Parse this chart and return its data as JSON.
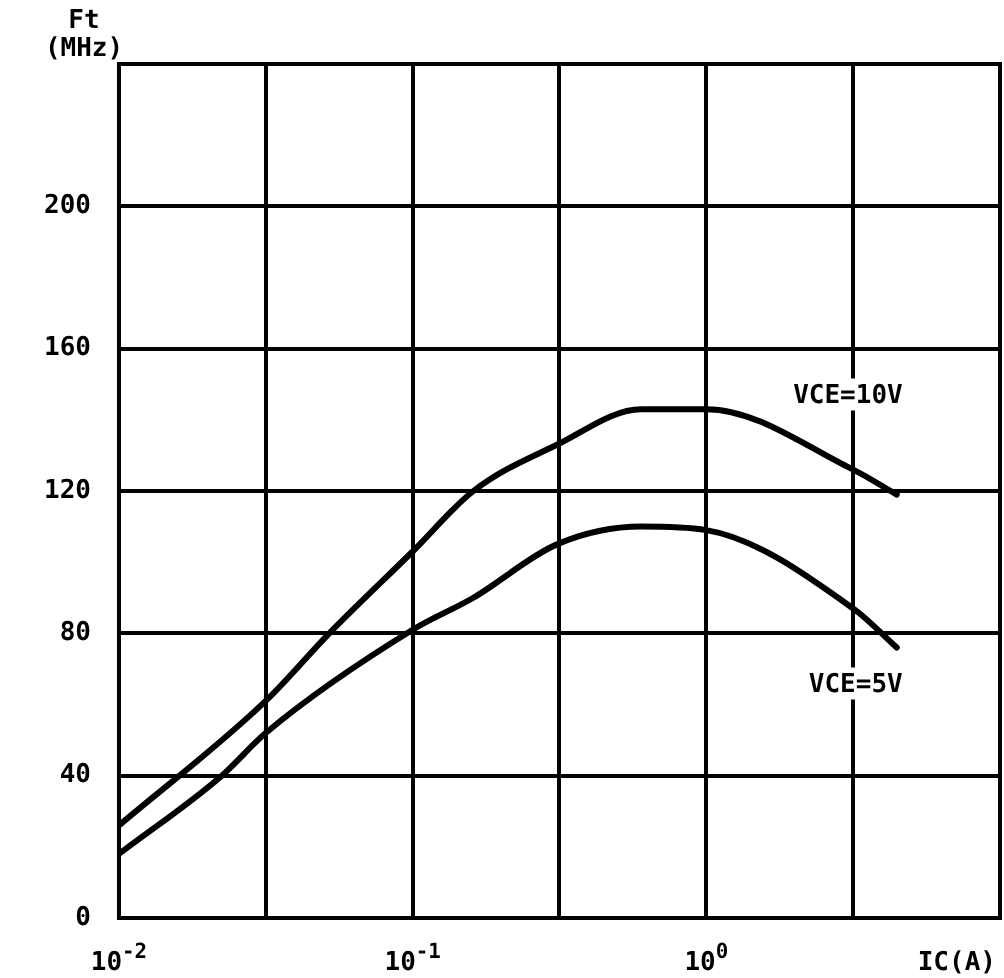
{
  "chart_data": {
    "type": "line",
    "xlabel": "IC(A)",
    "ylabel": "Ft (MHz)",
    "log": "x",
    "xlim": [
      0.01,
      10
    ],
    "xticks": [
      {
        "value": 0.01,
        "label": "10$^{-2}$"
      },
      {
        "value": 0.0316,
        "label": null
      },
      {
        "value": 0.1,
        "label": "10$^{-1}$"
      },
      {
        "value": 0.316,
        "label": null
      },
      {
        "value": 1,
        "label": "10$^{0}$"
      },
      {
        "value": 3.16,
        "label": null
      }
    ],
    "ylim": [
      0,
      240
    ],
    "yticks": [
      0,
      40,
      80,
      120,
      160,
      200
    ],
    "grid": true,
    "legend": false,
    "marker": "none",
    "line_style": "solid",
    "series": [
      {
        "name": "VCE=10V",
        "color": "#000000",
        "x": [
          0.01,
          0.0316,
          0.052,
          0.1,
          0.161,
          0.31,
          0.6,
          1,
          3.16,
          4.45
        ],
        "values": [
          26,
          61,
          80,
          103,
          120,
          133,
          143,
          143,
          126,
          119
        ]
      },
      {
        "name": "VCE=5V",
        "color": "#000000",
        "x": [
          0.01,
          0.0224,
          0.0316,
          0.1,
          0.161,
          0.31,
          0.6,
          1,
          3.16,
          4.45
        ],
        "values": [
          18,
          40,
          52,
          81,
          90,
          105,
          110,
          109,
          87,
          76
        ]
      }
    ]
  }
}
